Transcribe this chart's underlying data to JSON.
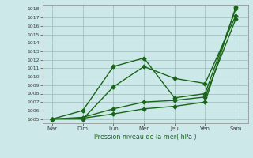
{
  "title": "",
  "xlabel": "Pression niveau de la mer( hPa )",
  "x_labels": [
    "Mar",
    "Dim",
    "Lun",
    "Mer",
    "Jeu",
    "Ven",
    "Sam"
  ],
  "x_positions": [
    0,
    1,
    2,
    3,
    4,
    5,
    6
  ],
  "ylim": [
    1004.5,
    1018.5
  ],
  "yticks": [
    1005,
    1006,
    1007,
    1008,
    1009,
    1010,
    1011,
    1012,
    1013,
    1014,
    1015,
    1016,
    1017,
    1018
  ],
  "line1": [
    1005.0,
    1006.0,
    1011.2,
    1012.2,
    1007.5,
    1008.0,
    1018.0
  ],
  "line2": [
    1005.0,
    1005.0,
    1008.8,
    1011.2,
    1009.8,
    1009.2,
    1017.2
  ],
  "line3": [
    1005.0,
    1005.2,
    1006.2,
    1007.0,
    1007.2,
    1007.6,
    1016.8
  ],
  "line4": [
    1005.0,
    1005.1,
    1005.6,
    1006.2,
    1006.5,
    1007.0,
    1018.2
  ],
  "line_color": "#1a6618",
  "bg_color": "#cce8e8",
  "grid_color": "#99bbbb",
  "marker": "D",
  "markersize": 2.5,
  "linewidth": 1.0
}
